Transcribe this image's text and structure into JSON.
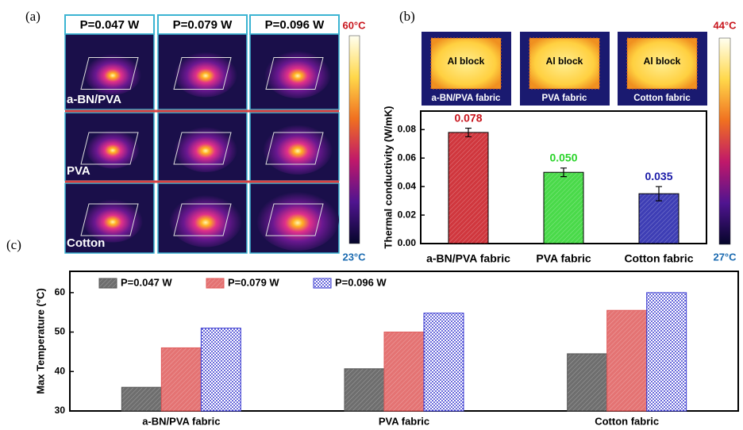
{
  "panel_labels": [
    "(a)",
    "(b)",
    "(c)"
  ],
  "thermal_maps": {
    "columns": [
      "P=0.047 W",
      "P=0.079 W",
      "P=0.096 W"
    ],
    "rows": [
      "a-BN/PVA",
      "PVA",
      "Cotton"
    ],
    "colorbar": {
      "max": "60°C",
      "min": "23°C"
    }
  },
  "thermal_images": {
    "labels": [
      "Al block",
      "Al block",
      "Al block"
    ],
    "captions": [
      "a-BN/PVA fabric",
      "PVA fabric",
      "Cotton fabric"
    ],
    "colorbar": {
      "max": "44°C",
      "min": "27°C"
    }
  },
  "chart_data": [
    {
      "type": "bar",
      "ylabel": "Thermal conductivity (W/mK)",
      "categories": [
        "a-BN/PVA fabric",
        "PVA fabric",
        "Cotton fabric"
      ],
      "values": [
        0.078,
        0.05,
        0.035
      ],
      "value_labels": [
        "0.078",
        "0.050",
        "0.035"
      ],
      "errors": [
        0.003,
        0.003,
        0.005
      ],
      "colors": [
        "#c8141c",
        "#2ad42a",
        "#1c1ca8"
      ],
      "ylim": [
        0,
        0.093
      ],
      "yticks": [
        {
          "value": 0,
          "label": "0.00"
        },
        0.02,
        0.04,
        0.06,
        0.08
      ]
    },
    {
      "type": "bar",
      "ylabel": "Max Temperature (°C)",
      "categories": [
        "a-BN/PVA fabric",
        "PVA fabric",
        "Cotton fabric"
      ],
      "series": [
        {
          "name": "P=0.047 W",
          "color": "#555555",
          "values": [
            36,
            40.7,
            44.5
          ]
        },
        {
          "name": "P=0.079 W",
          "color": "#e05a5a",
          "values": [
            46,
            50,
            55.5
          ]
        },
        {
          "name": "P=0.096 W",
          "color": "#3a3ad0",
          "values": [
            51,
            54.8,
            60
          ]
        }
      ],
      "ylim": [
        30,
        65.4
      ],
      "yticks": [
        30,
        40,
        50,
        60
      ]
    }
  ]
}
